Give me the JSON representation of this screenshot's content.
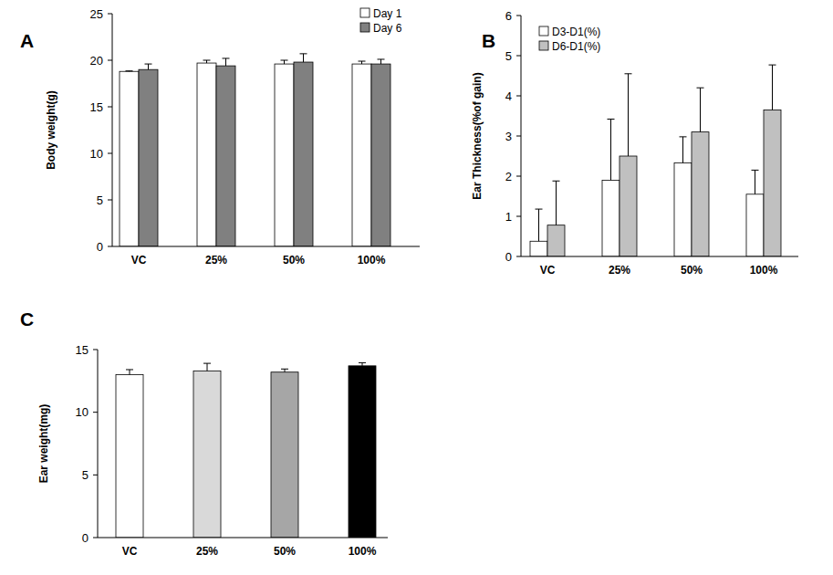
{
  "chart_data": [
    {
      "type": "bar",
      "title": "A",
      "y_label": "Body weight(g)",
      "categories": [
        "VC",
        "25%",
        "50%",
        "100%"
      ],
      "series": [
        {
          "name": "Day 1",
          "color": "#ffffff",
          "values": [
            18.8,
            19.7,
            19.6,
            19.6
          ],
          "errors": [
            0.05,
            0.3,
            0.4,
            0.3
          ]
        },
        {
          "name": "Day 6",
          "color": "#808080",
          "values": [
            19.0,
            19.4,
            19.8,
            19.6
          ],
          "errors": [
            0.6,
            0.8,
            0.9,
            0.5
          ]
        }
      ],
      "ylim": [
        0,
        25
      ],
      "yticks": [
        0,
        5,
        10,
        15,
        20,
        25
      ],
      "grid": false,
      "legend": "top-right"
    },
    {
      "type": "bar",
      "title": "B",
      "y_label": "Ear Thickness(%of  gain)",
      "categories": [
        "VC",
        "25%",
        "50%",
        "100%"
      ],
      "series": [
        {
          "name": "D3-D1(%)",
          "color": "#ffffff",
          "values": [
            0.38,
            1.9,
            2.33,
            1.55
          ],
          "errors": [
            0.8,
            1.52,
            0.65,
            0.6
          ]
        },
        {
          "name": "D6-D1(%)",
          "color": "#c0c0c0",
          "values": [
            0.78,
            2.5,
            3.1,
            3.65
          ],
          "errors": [
            1.1,
            2.05,
            1.1,
            1.12
          ]
        }
      ],
      "ylim": [
        0,
        6
      ],
      "yticks": [
        0,
        1,
        2,
        3,
        4,
        5,
        6
      ],
      "grid": false,
      "legend": "top-left"
    },
    {
      "type": "bar",
      "title": "C",
      "y_label": "Ear weight(mg)",
      "categories": [
        "VC",
        "25%",
        "50%",
        "100%"
      ],
      "values": [
        13.0,
        13.3,
        13.2,
        13.7
      ],
      "errors": [
        0.4,
        0.6,
        0.25,
        0.25
      ],
      "colors": [
        "#ffffff",
        "#d9d9d9",
        "#a6a6a6",
        "#000000"
      ],
      "ylim": [
        0,
        15
      ],
      "yticks": [
        0,
        5,
        10,
        15
      ],
      "grid": false
    }
  ]
}
